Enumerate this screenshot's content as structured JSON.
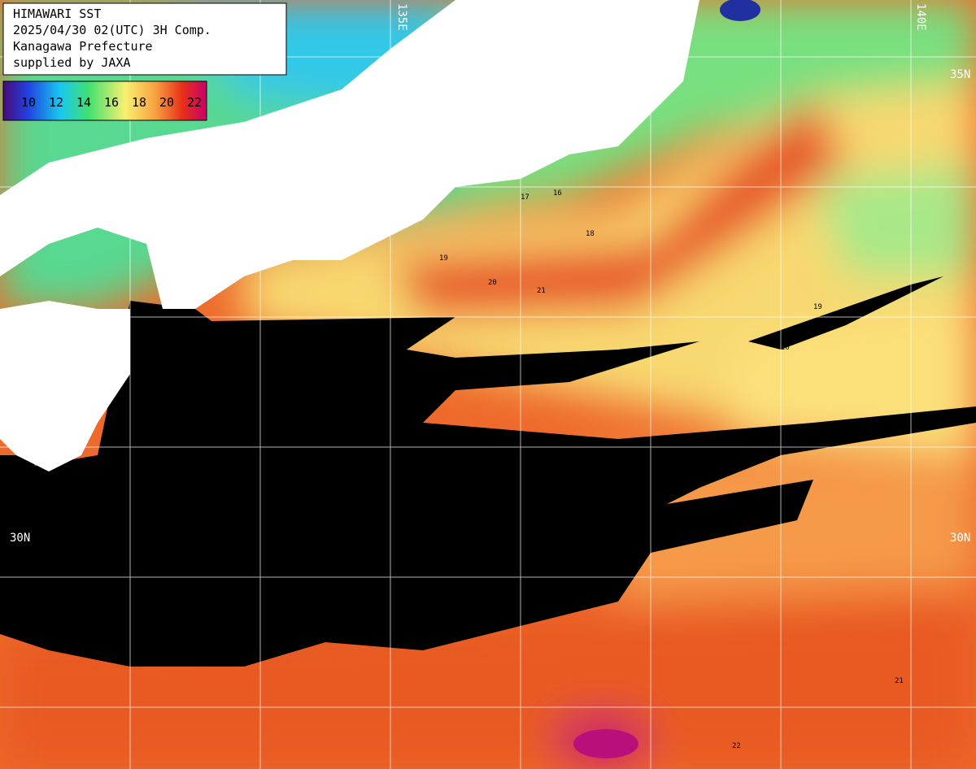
{
  "header": {
    "lines": [
      "HIMAWARI SST",
      "2025/04/30 02(UTC) 3H Comp.",
      "Kanagawa Prefecture",
      "supplied by JAXA"
    ]
  },
  "legend": {
    "ticks": [
      10,
      12,
      14,
      16,
      18,
      20,
      22
    ]
  },
  "grid_labels": {
    "left": "30N",
    "right": "30N",
    "top_right": "35N",
    "top_left": "135E",
    "top_far": "140E"
  },
  "contour_labels": [
    "19",
    "20",
    "21",
    "18",
    "17",
    "16",
    "20",
    "19",
    "21",
    "22"
  ]
}
